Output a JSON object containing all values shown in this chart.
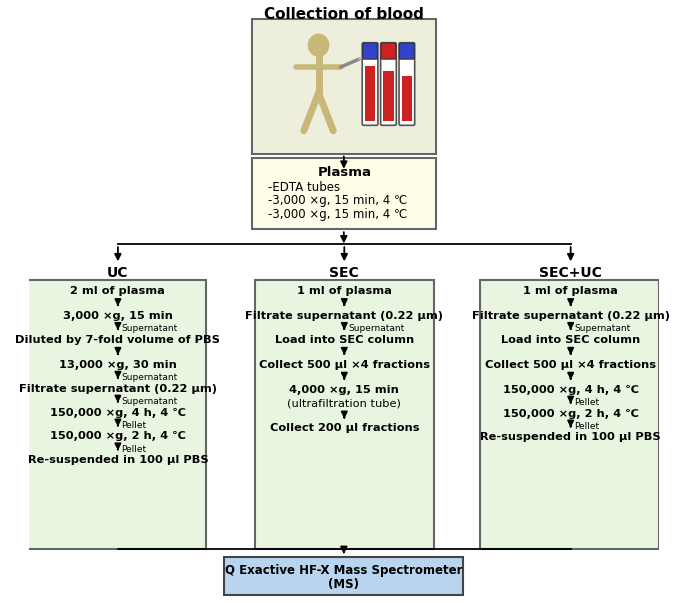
{
  "title": "Collection of blood",
  "bg_color": "#ffffff",
  "plasma_box_color": "#fdfde8",
  "plasma_box_border": "#666666",
  "green_box_color": "#e8f5e0",
  "green_box_border": "#666666",
  "blue_box_color": "#b8d4ee",
  "blue_box_border": "#444444",
  "top_image_bg": "#eeeedd",
  "col_labels": [
    "UC",
    "SEC",
    "SEC+UC"
  ],
  "figure_bg": "#ffffff"
}
